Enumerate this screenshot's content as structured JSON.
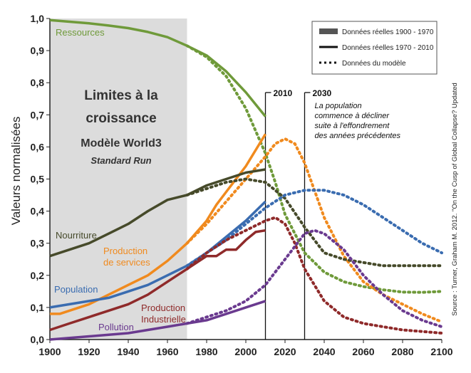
{
  "chart_data": {
    "type": "line",
    "title_lines": [
      "Limites à la",
      "croissance",
      "Modèle World3"
    ],
    "subtitle": "Standard Run",
    "ylabel": "Valeurs normalisées",
    "xlabel": "",
    "xlim": [
      1900,
      2100
    ],
    "ylim": [
      0,
      1
    ],
    "x_ticks": [
      "1900",
      "1920",
      "1940",
      "1960",
      "1980",
      "2000",
      "2020",
      "2040",
      "2060",
      "2080",
      "2100"
    ],
    "y_ticks": [
      "0,0",
      "0,1",
      "0,2",
      "0,3",
      "0,4",
      "0,5",
      "0,6",
      "0,7",
      "0,8",
      "0,9",
      "1,0"
    ],
    "shaded_region": [
      1900,
      1970
    ],
    "legend": [
      {
        "label": "Données réelles 1900 - 1970",
        "style": "shade"
      },
      {
        "label": "Données réelles 1970 - 2010",
        "style": "solid"
      },
      {
        "label": "Données du modèle",
        "style": "dotted"
      }
    ],
    "annotations": [
      {
        "year_label": "2010",
        "x": 2010
      },
      {
        "year_label": "2030",
        "x": 2030,
        "text": [
          "La population",
          "commence à décliner",
          "suite à l'effondrement",
          "des années précédentes"
        ]
      }
    ],
    "series": [
      {
        "name": "Ressources",
        "color": "#6f9a3a",
        "label_lines": [
          "Ressources"
        ],
        "real": [
          [
            1900,
            0.995
          ],
          [
            1910,
            0.99
          ],
          [
            1920,
            0.985
          ],
          [
            1930,
            0.978
          ],
          [
            1940,
            0.97
          ],
          [
            1950,
            0.958
          ],
          [
            1960,
            0.942
          ],
          [
            1970,
            0.915
          ],
          [
            1980,
            0.885
          ],
          [
            1990,
            0.835
          ],
          [
            2000,
            0.77
          ],
          [
            2010,
            0.695
          ]
        ],
        "model": [
          [
            1970,
            0.915
          ],
          [
            1980,
            0.88
          ],
          [
            1990,
            0.82
          ],
          [
            2000,
            0.72
          ],
          [
            2010,
            0.58
          ],
          [
            2015,
            0.49
          ],
          [
            2020,
            0.39
          ],
          [
            2030,
            0.27
          ],
          [
            2040,
            0.21
          ],
          [
            2050,
            0.18
          ],
          [
            2060,
            0.165
          ],
          [
            2070,
            0.155
          ],
          [
            2080,
            0.148
          ],
          [
            2090,
            0.147
          ],
          [
            2100,
            0.15
          ]
        ]
      },
      {
        "name": "Production de services",
        "color": "#f08a1e",
        "label_lines": [
          "Production",
          "de services"
        ],
        "real": [
          [
            1900,
            0.08
          ],
          [
            1905,
            0.08
          ],
          [
            1910,
            0.09
          ],
          [
            1920,
            0.11
          ],
          [
            1930,
            0.14
          ],
          [
            1940,
            0.17
          ],
          [
            1950,
            0.2
          ],
          [
            1960,
            0.245
          ],
          [
            1970,
            0.3
          ],
          [
            1980,
            0.37
          ],
          [
            1985,
            0.42
          ],
          [
            1990,
            0.46
          ],
          [
            2000,
            0.54
          ],
          [
            2010,
            0.64
          ]
        ],
        "model": [
          [
            1970,
            0.3
          ],
          [
            1980,
            0.36
          ],
          [
            1990,
            0.43
          ],
          [
            2000,
            0.5
          ],
          [
            2010,
            0.57
          ],
          [
            2015,
            0.61
          ],
          [
            2020,
            0.625
          ],
          [
            2025,
            0.61
          ],
          [
            2030,
            0.55
          ],
          [
            2040,
            0.38
          ],
          [
            2050,
            0.26
          ],
          [
            2060,
            0.18
          ],
          [
            2070,
            0.14
          ],
          [
            2080,
            0.11
          ],
          [
            2090,
            0.08
          ],
          [
            2100,
            0.055
          ]
        ]
      },
      {
        "name": "Nourriture",
        "color": "#464a2a",
        "label_lines": [
          "Nourriture"
        ],
        "real": [
          [
            1900,
            0.26
          ],
          [
            1910,
            0.28
          ],
          [
            1920,
            0.3
          ],
          [
            1930,
            0.33
          ],
          [
            1940,
            0.36
          ],
          [
            1950,
            0.4
          ],
          [
            1960,
            0.435
          ],
          [
            1970,
            0.45
          ],
          [
            1980,
            0.48
          ],
          [
            1990,
            0.5
          ],
          [
            2000,
            0.52
          ],
          [
            2010,
            0.53
          ]
        ],
        "model": [
          [
            1970,
            0.45
          ],
          [
            1980,
            0.47
          ],
          [
            1990,
            0.49
          ],
          [
            2000,
            0.5
          ],
          [
            2010,
            0.49
          ],
          [
            2020,
            0.44
          ],
          [
            2030,
            0.35
          ],
          [
            2040,
            0.27
          ],
          [
            2050,
            0.25
          ],
          [
            2060,
            0.24
          ],
          [
            2070,
            0.23
          ],
          [
            2080,
            0.23
          ],
          [
            2090,
            0.23
          ],
          [
            2100,
            0.23
          ]
        ]
      },
      {
        "name": "Population",
        "color": "#3a6cb0",
        "label_lines": [
          "Population"
        ],
        "real": [
          [
            1900,
            0.1
          ],
          [
            1910,
            0.11
          ],
          [
            1920,
            0.12
          ],
          [
            1930,
            0.13
          ],
          [
            1940,
            0.15
          ],
          [
            1950,
            0.17
          ],
          [
            1960,
            0.2
          ],
          [
            1970,
            0.23
          ],
          [
            1980,
            0.27
          ],
          [
            1990,
            0.32
          ],
          [
            2000,
            0.37
          ],
          [
            2010,
            0.43
          ]
        ],
        "model": [
          [
            1970,
            0.23
          ],
          [
            1980,
            0.27
          ],
          [
            1990,
            0.31
          ],
          [
            2000,
            0.36
          ],
          [
            2010,
            0.41
          ],
          [
            2020,
            0.45
          ],
          [
            2030,
            0.465
          ],
          [
            2040,
            0.465
          ],
          [
            2050,
            0.45
          ],
          [
            2060,
            0.42
          ],
          [
            2070,
            0.38
          ],
          [
            2080,
            0.34
          ],
          [
            2090,
            0.3
          ],
          [
            2100,
            0.27
          ]
        ]
      },
      {
        "name": "Production Industrielle",
        "color": "#8f2a2a",
        "label_lines": [
          "Production",
          "Industrielle"
        ],
        "real": [
          [
            1900,
            0.03
          ],
          [
            1910,
            0.05
          ],
          [
            1920,
            0.07
          ],
          [
            1930,
            0.09
          ],
          [
            1940,
            0.11
          ],
          [
            1950,
            0.14
          ],
          [
            1960,
            0.18
          ],
          [
            1970,
            0.22
          ],
          [
            1980,
            0.26
          ],
          [
            1985,
            0.26
          ],
          [
            1990,
            0.28
          ],
          [
            1995,
            0.28
          ],
          [
            2000,
            0.31
          ],
          [
            2005,
            0.335
          ],
          [
            2010,
            0.34
          ]
        ],
        "model": [
          [
            1970,
            0.22
          ],
          [
            1980,
            0.27
          ],
          [
            1990,
            0.31
          ],
          [
            2000,
            0.34
          ],
          [
            2010,
            0.37
          ],
          [
            2015,
            0.38
          ],
          [
            2020,
            0.36
          ],
          [
            2025,
            0.3
          ],
          [
            2030,
            0.22
          ],
          [
            2040,
            0.12
          ],
          [
            2050,
            0.07
          ],
          [
            2060,
            0.05
          ],
          [
            2070,
            0.04
          ],
          [
            2080,
            0.03
          ],
          [
            2090,
            0.025
          ],
          [
            2100,
            0.02
          ]
        ]
      },
      {
        "name": "Pollution",
        "color": "#6a3a8f",
        "label_lines": [
          "Pollution"
        ],
        "real": [
          [
            1900,
            0.0
          ],
          [
            1920,
            0.01
          ],
          [
            1940,
            0.02
          ],
          [
            1960,
            0.04
          ],
          [
            1970,
            0.05
          ],
          [
            1980,
            0.06
          ],
          [
            1990,
            0.08
          ],
          [
            2000,
            0.1
          ],
          [
            2010,
            0.12
          ]
        ],
        "model": [
          [
            1970,
            0.05
          ],
          [
            1980,
            0.07
          ],
          [
            1990,
            0.09
          ],
          [
            2000,
            0.12
          ],
          [
            2010,
            0.17
          ],
          [
            2020,
            0.25
          ],
          [
            2030,
            0.33
          ],
          [
            2035,
            0.34
          ],
          [
            2040,
            0.33
          ],
          [
            2050,
            0.28
          ],
          [
            2060,
            0.2
          ],
          [
            2070,
            0.14
          ],
          [
            2080,
            0.09
          ],
          [
            2090,
            0.06
          ],
          [
            2100,
            0.04
          ]
        ]
      }
    ],
    "source_text": "Source : Turner, Graham M. 2012. \"On the Cusp of Global Collapse? Updated"
  }
}
